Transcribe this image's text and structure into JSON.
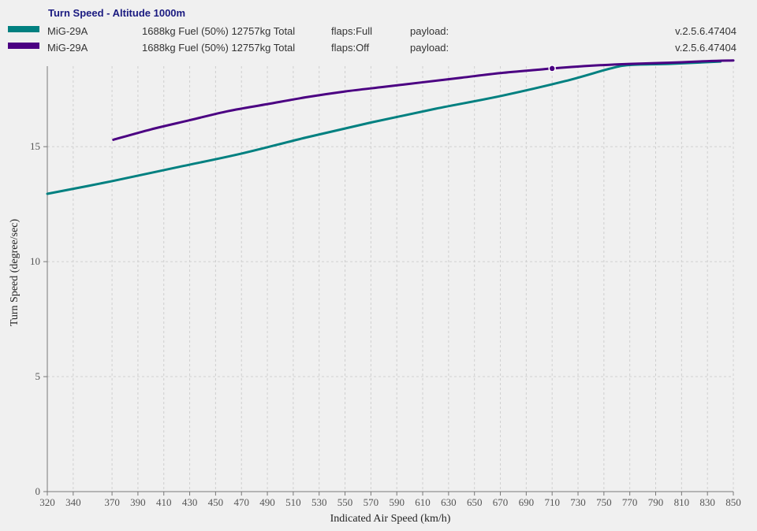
{
  "chart_data": {
    "type": "line",
    "title": "Turn Speed - Altitude 1000m",
    "xlabel": "Indicated Air Speed (km/h)",
    "ylabel": "Turn Speed (degree/sec)",
    "xlim": [
      320,
      850
    ],
    "ylim": [
      0,
      18.5
    ],
    "xticks": [
      320,
      340,
      370,
      390,
      410,
      430,
      450,
      470,
      490,
      510,
      530,
      550,
      570,
      590,
      610,
      630,
      650,
      670,
      690,
      710,
      730,
      750,
      770,
      790,
      810,
      830,
      850
    ],
    "yticks": [
      0,
      5,
      10,
      15
    ],
    "grid": true,
    "legend_position": "top",
    "series": [
      {
        "name": "MiG-29A",
        "fuel": "1688kg Fuel (50%) 12757kg Total",
        "flaps": "flaps:Full",
        "payload": "payload:",
        "version": "v.2.5.6.47404",
        "color": "#008080",
        "x": [
          320,
          370,
          420,
          470,
          520,
          570,
          620,
          670,
          720,
          755,
          770,
          800,
          840
        ],
        "y": [
          12.95,
          13.5,
          14.1,
          14.7,
          15.4,
          16.05,
          16.65,
          17.2,
          17.85,
          18.4,
          18.55,
          18.6,
          18.7
        ]
      },
      {
        "name": "MiG-29A",
        "fuel": "1688kg Fuel (50%) 12757kg Total",
        "flaps": "flaps:Off",
        "payload": "payload:",
        "version": "v.2.5.6.47404",
        "color": "#4b0082",
        "x": [
          371,
          400,
          430,
          460,
          490,
          520,
          550,
          580,
          610,
          640,
          670,
          700,
          710,
          740,
          770,
          800,
          830,
          850
        ],
        "y": [
          15.3,
          15.75,
          16.15,
          16.55,
          16.85,
          17.15,
          17.4,
          17.6,
          17.8,
          18.0,
          18.2,
          18.35,
          18.4,
          18.52,
          18.6,
          18.65,
          18.72,
          18.75
        ],
        "marker": {
          "x": 710,
          "y": 18.4
        }
      }
    ]
  }
}
